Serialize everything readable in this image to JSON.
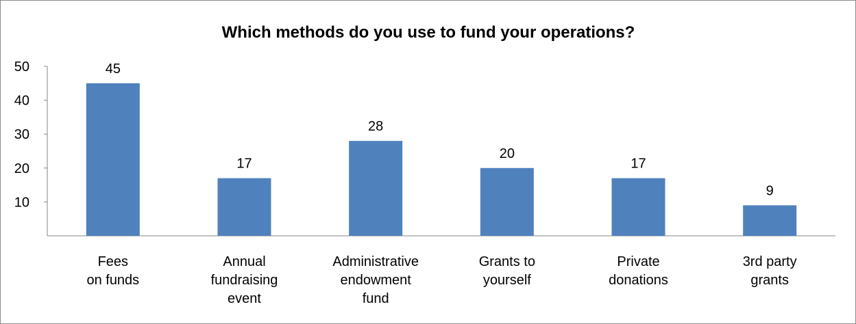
{
  "chart_data": {
    "type": "bar",
    "title": "Which methods do you use to fund your operations?",
    "categories": [
      [
        "Fees",
        "on funds"
      ],
      [
        "Annual",
        "fundraising",
        "event"
      ],
      [
        "Administrative",
        "endowment",
        "fund"
      ],
      [
        "Grants to",
        "yourself"
      ],
      [
        "Private",
        "donations"
      ],
      [
        "3rd party",
        "grants"
      ]
    ],
    "values": [
      45,
      17,
      28,
      20,
      17,
      9
    ],
    "yticks": [
      10,
      20,
      30,
      40,
      50
    ],
    "ylim": [
      0,
      50
    ],
    "xlabel": "",
    "ylabel": "",
    "grid": false,
    "legend": "none",
    "bar_color": "#4f81bd",
    "axis_color": "#868686"
  }
}
